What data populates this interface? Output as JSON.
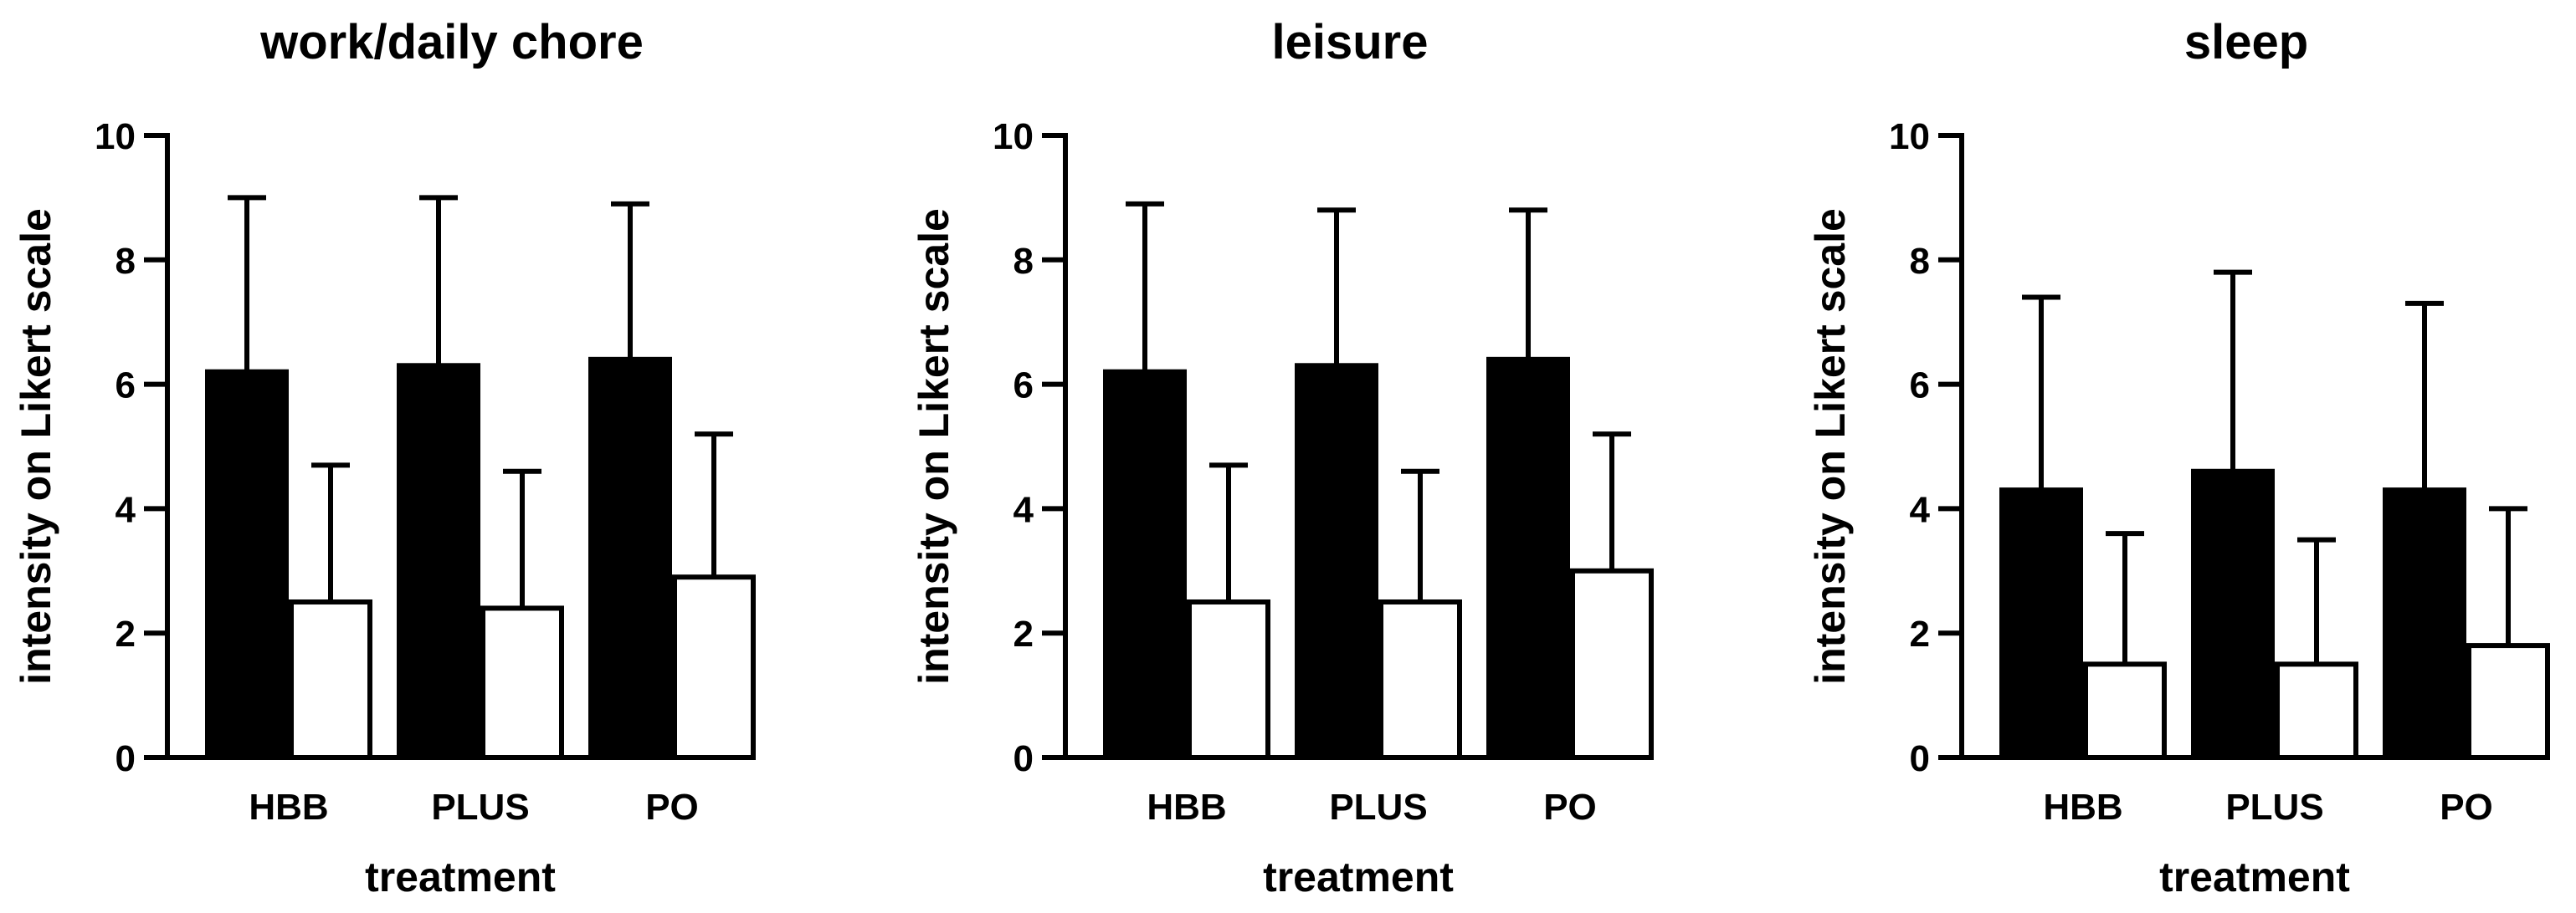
{
  "chart_data": [
    {
      "type": "bar",
      "title": "work/daily chore",
      "xlabel": "treatment",
      "ylabel": "intensity on Likert scale",
      "ylim": [
        0,
        10
      ],
      "yticks": [
        "0",
        "2",
        "4",
        "6",
        "8",
        "10"
      ],
      "categories": [
        "HBB",
        "PLUS",
        "PO"
      ],
      "series": [
        {
          "fill": "#000000",
          "values": [
            6.2,
            6.3,
            6.4
          ],
          "error_upper": [
            9.0,
            9.0,
            8.9
          ]
        },
        {
          "fill": "#ffffff",
          "values": [
            2.5,
            2.4,
            2.9
          ],
          "error_upper": [
            4.7,
            4.6,
            5.2
          ]
        }
      ],
      "grid": false
    },
    {
      "type": "bar",
      "title": "leisure",
      "xlabel": "treatment",
      "ylabel": "intensity on Likert scale",
      "ylim": [
        0,
        10
      ],
      "yticks": [
        "0",
        "2",
        "4",
        "6",
        "8",
        "10"
      ],
      "categories": [
        "HBB",
        "PLUS",
        "PO"
      ],
      "series": [
        {
          "fill": "#000000",
          "values": [
            6.2,
            6.3,
            6.4
          ],
          "error_upper": [
            8.9,
            8.8,
            8.8
          ]
        },
        {
          "fill": "#ffffff",
          "values": [
            2.5,
            2.5,
            3.0
          ],
          "error_upper": [
            4.7,
            4.6,
            5.2
          ]
        }
      ],
      "grid": false
    },
    {
      "type": "bar",
      "title": "sleep",
      "xlabel": "treatment",
      "ylabel": "intensity on Likert scale",
      "ylim": [
        0,
        10
      ],
      "yticks": [
        "0",
        "2",
        "4",
        "6",
        "8",
        "10"
      ],
      "categories": [
        "HBB",
        "PLUS",
        "PO"
      ],
      "series": [
        {
          "fill": "#000000",
          "values": [
            4.3,
            4.6,
            4.3
          ],
          "error_upper": [
            7.4,
            7.8,
            7.3
          ]
        },
        {
          "fill": "#ffffff",
          "values": [
            1.5,
            1.5,
            1.8
          ],
          "error_upper": [
            3.6,
            3.5,
            4.0
          ]
        }
      ],
      "grid": false
    }
  ]
}
